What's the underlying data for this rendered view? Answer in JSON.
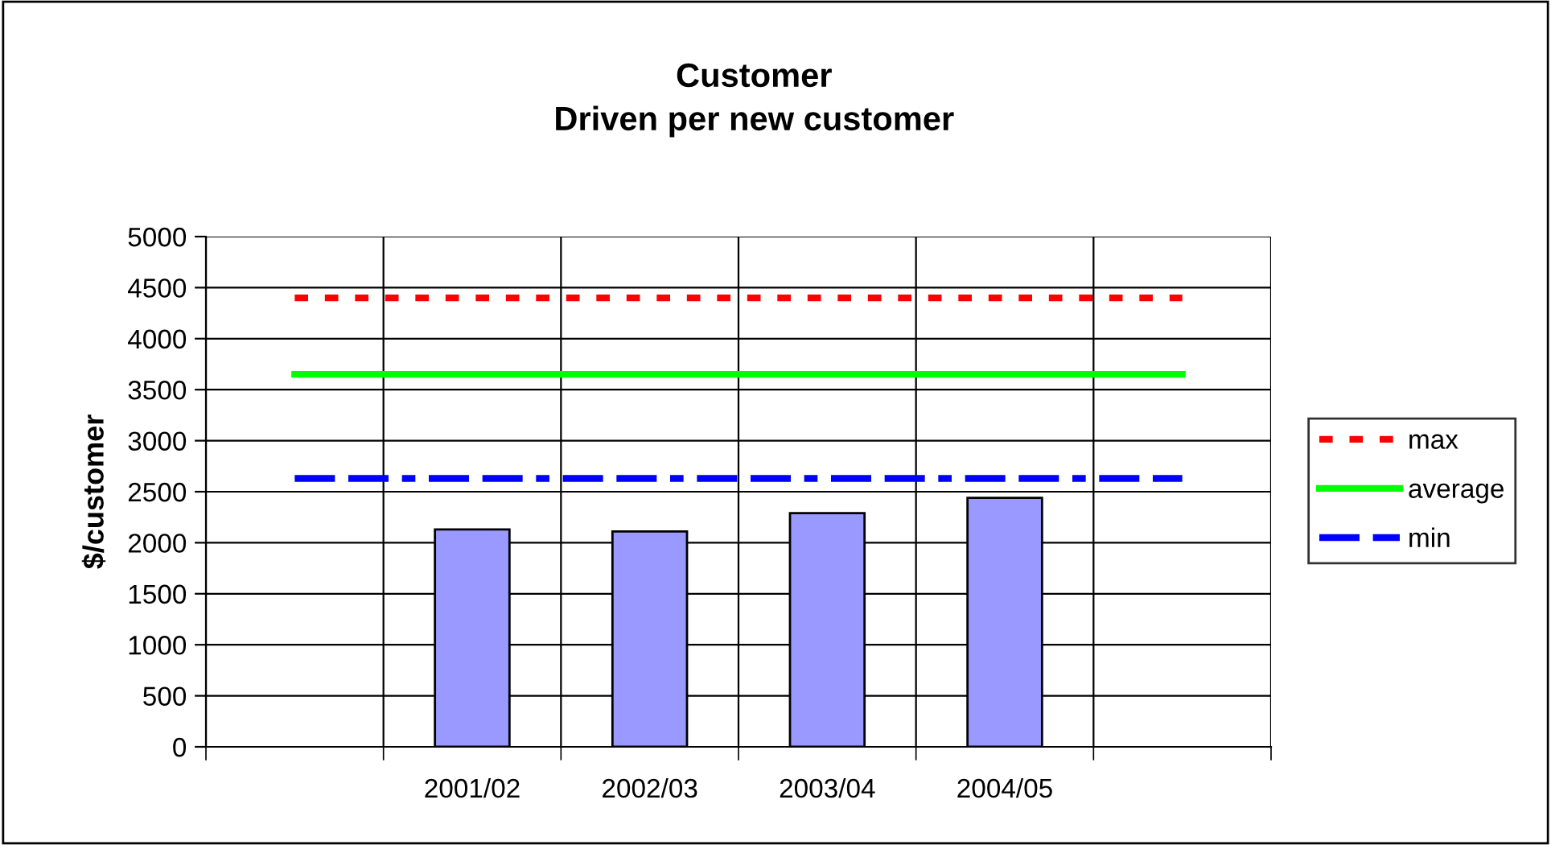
{
  "chart_data": {
    "type": "bar",
    "title": "Customer\nDriven per new customer",
    "ylabel": "$/customer",
    "categories": [
      null,
      "2001/02",
      "2002/03",
      "2003/04",
      "2004/05",
      null
    ],
    "series": [
      {
        "color": "#9999ff",
        "values": [
          null,
          2130,
          2110,
          2290,
          2440,
          null
        ]
      },
      {
        "type": "line",
        "name": "max",
        "color": "#ff0000",
        "line_style": "dotted",
        "values": [
          4400,
          4400,
          4400,
          4400,
          4400,
          4400
        ]
      },
      {
        "type": "line",
        "name": "average",
        "color": "#00ff00",
        "line_style": "solid",
        "values": [
          3650,
          3650,
          3650,
          3650,
          3650,
          3650
        ]
      },
      {
        "type": "line",
        "name": "min",
        "color": "#0000ff",
        "line_style": "dashed",
        "values": [
          2630,
          2630,
          2630,
          2630,
          2630,
          2630
        ]
      }
    ],
    "ylim": [
      0,
      5000
    ],
    "yticks": [
      0,
      500,
      1000,
      1500,
      2000,
      2500,
      3000,
      3500,
      4000,
      4500,
      5000
    ],
    "grid": true,
    "legend": "right"
  }
}
